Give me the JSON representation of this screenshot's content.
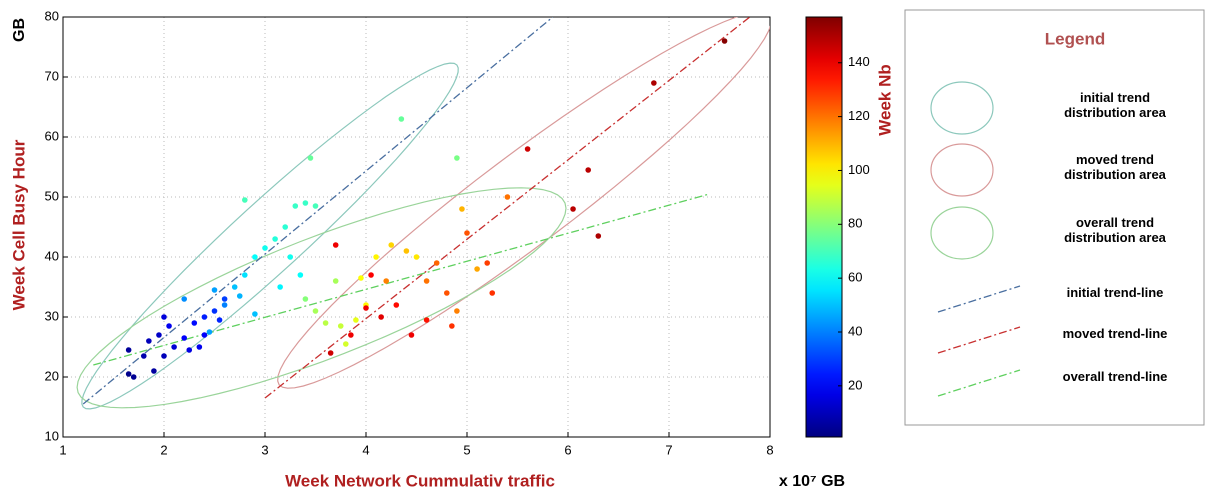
{
  "chart_data": {
    "type": "scatter",
    "x_label": "Week Network Cummulativ traffic",
    "x_unit": "x 10⁷ GB",
    "y_label": "Week Cell Busy Hour",
    "y_unit": "GB",
    "xlim": [
      1,
      8
    ],
    "ylim": [
      10,
      80
    ],
    "xticks": [
      1,
      2,
      3,
      4,
      5,
      6,
      7,
      8
    ],
    "yticks": [
      10,
      20,
      30,
      40,
      50,
      60,
      70,
      80
    ],
    "grid": true,
    "colormap": "jet",
    "colorbar": {
      "label": "Week Nb",
      "lim": [
        1,
        157
      ],
      "ticks": [
        20,
        40,
        60,
        80,
        100,
        120,
        140
      ]
    },
    "series": [
      {
        "x": [
          1.65,
          1.65,
          1.7,
          1.8,
          1.85,
          1.9,
          1.95,
          2.0,
          2.05,
          2.1,
          2.2,
          2.25,
          2.3,
          2.4,
          2.4,
          2.5,
          2.55,
          2.6,
          2.0,
          2.35,
          2.5,
          2.6,
          2.7,
          2.75,
          2.8,
          2.9,
          3.0,
          3.1,
          3.2,
          3.3,
          3.4,
          3.5,
          3.25,
          3.35,
          3.15,
          2.8,
          3.45,
          4.35,
          4.9,
          2.9,
          2.2,
          2.45,
          3.5,
          3.6,
          3.75,
          3.8,
          3.9,
          3.95,
          4.1,
          4.25,
          4.4,
          4.5,
          3.7,
          4.0,
          4.95,
          5.1,
          3.4,
          4.6,
          4.7,
          4.8,
          4.9,
          5.0,
          5.2,
          5.25,
          4.85,
          5.4,
          4.2,
          3.85,
          4.0,
          4.05,
          4.15,
          4.3,
          4.45,
          3.65,
          3.7,
          4.6,
          5.6,
          6.05,
          6.2,
          6.3,
          6.85,
          7.55
        ],
        "y": [
          24.5,
          20.5,
          20,
          23.5,
          26,
          21,
          27,
          30,
          28.5,
          25,
          26.5,
          24.5,
          29,
          30,
          27,
          31,
          29.5,
          33,
          23.5,
          25,
          34.5,
          32,
          35,
          33.5,
          37,
          40,
          41.5,
          43,
          45,
          48.5,
          49,
          48.5,
          40,
          37,
          35,
          49.5,
          56.5,
          63,
          56.5,
          30.5,
          33,
          27.5,
          31,
          29,
          28.5,
          25.5,
          29.5,
          36.5,
          40,
          42,
          41,
          40,
          36,
          32,
          48,
          38,
          33,
          36,
          39,
          34,
          31,
          44,
          39,
          34,
          28.5,
          50,
          36,
          27,
          31.5,
          37,
          30,
          32,
          27,
          24,
          42,
          29.5,
          58,
          48,
          54.5,
          43.5,
          69,
          76
        ],
        "weeks": [
          5,
          3,
          4,
          8,
          10,
          6,
          12,
          15,
          18,
          14,
          20,
          16,
          22,
          25,
          20,
          28,
          26,
          30,
          10,
          18,
          45,
          40,
          50,
          48,
          55,
          60,
          62,
          65,
          66,
          68,
          68,
          70,
          62,
          60,
          58,
          70,
          75,
          75,
          78,
          50,
          42,
          45,
          85,
          88,
          90,
          92,
          95,
          98,
          100,
          105,
          108,
          102,
          85,
          100,
          110,
          112,
          80,
          120,
          122,
          125,
          118,
          125,
          128,
          130,
          130,
          120,
          118,
          140,
          140,
          138,
          142,
          136,
          140,
          145,
          140,
          135,
          145,
          148,
          148,
          150,
          150,
          156
        ]
      }
    ],
    "areas": [
      {
        "name": "initial trend distribution area",
        "color": "#8cc8bc",
        "center": [
          3.05,
          43.5
        ],
        "axis1": [
          1.85,
          28.5
        ],
        "axis2": [
          0.23,
          -4.3
        ]
      },
      {
        "name": "moved trend distribution area",
        "color": "#d99a9a",
        "center": [
          5.57,
          49.5
        ],
        "axis1": [
          2.43,
          30.8
        ],
        "axis2": [
          0.27,
          -6
        ]
      },
      {
        "name": "overall trend distribution area",
        "color": "#9ad49a",
        "center": [
          3.56,
          33.2
        ],
        "axis1": [
          2.41,
          15.8
        ],
        "axis2": [
          0.22,
          -9.3
        ]
      }
    ],
    "trend_lines": [
      {
        "name": "initial trend-line",
        "color": "#4a6fa0",
        "x": [
          1.2,
          5.85
        ],
        "y": [
          15.5,
          80
        ]
      },
      {
        "name": "moved trend-line",
        "color": "#c83030",
        "x": [
          3.0,
          7.8
        ],
        "y": [
          16.5,
          80
        ]
      },
      {
        "name": "overall trend-line",
        "color": "#5fd05f",
        "x": [
          1.3,
          7.4
        ],
        "y": [
          22,
          50.5
        ]
      }
    ],
    "legend": {
      "title": "Legend",
      "position": "right"
    }
  }
}
